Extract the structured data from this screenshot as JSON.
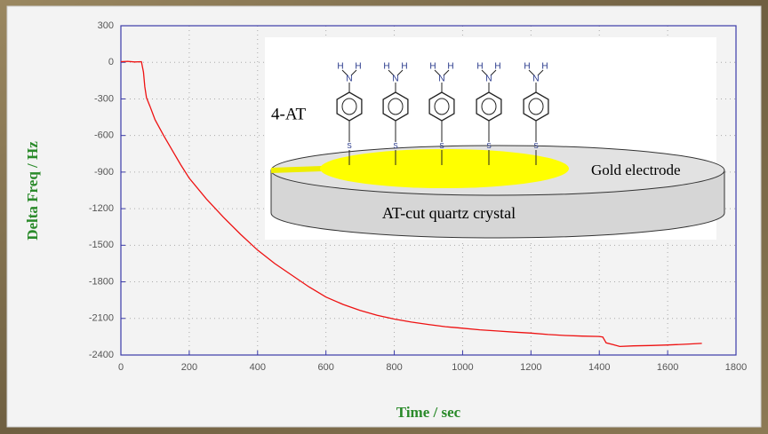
{
  "chart_data": {
    "type": "line",
    "xlabel": "Time / sec",
    "ylabel": "Delta Freq / Hz",
    "color": "#ee1111",
    "x": [
      0,
      20,
      40,
      60,
      66,
      70,
      75,
      85,
      100,
      125,
      150,
      175,
      200,
      250,
      300,
      350,
      400,
      450,
      500,
      550,
      600,
      650,
      700,
      750,
      800,
      850,
      900,
      950,
      1000,
      1050,
      1100,
      1150,
      1200,
      1250,
      1300,
      1350,
      1400,
      1410,
      1420,
      1440,
      1460,
      1500,
      1550,
      1600,
      1650,
      1700
    ],
    "values": [
      5,
      8,
      3,
      5,
      -80,
      -200,
      -290,
      -360,
      -470,
      -600,
      -720,
      -840,
      -950,
      -1120,
      -1270,
      -1410,
      -1540,
      -1650,
      -1745,
      -1840,
      -1925,
      -1985,
      -2035,
      -2075,
      -2105,
      -2130,
      -2150,
      -2168,
      -2180,
      -2193,
      -2203,
      -2212,
      -2220,
      -2232,
      -2240,
      -2245,
      -2248,
      -2252,
      -2300,
      -2315,
      -2330,
      -2325,
      -2322,
      -2318,
      -2312,
      -2305
    ],
    "xlim": [
      0,
      1800
    ],
    "ylim": [
      -2400,
      300
    ],
    "xticks": [
      0,
      200,
      400,
      600,
      800,
      1000,
      1200,
      1400,
      1600,
      1800
    ],
    "yticks": [
      300,
      0,
      -300,
      -600,
      -900,
      -1200,
      -1500,
      -1800,
      -2100,
      -2400
    ],
    "grid": true,
    "inset": {
      "molecule_label": "4-AT",
      "electrode_label": "Gold electrode",
      "substrate_label": "AT-cut quartz crystal",
      "atom_h": "H",
      "atom_n": "N",
      "atom_s": "S"
    }
  }
}
